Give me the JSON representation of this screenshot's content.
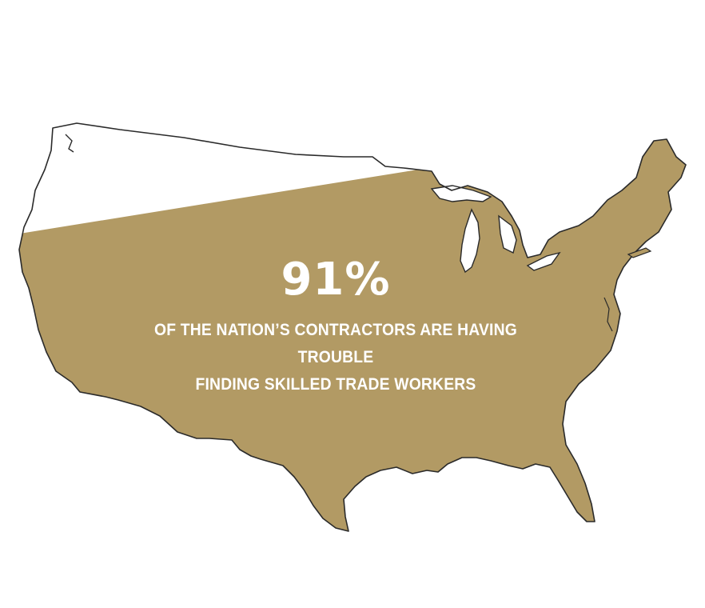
{
  "infographic": {
    "stat": {
      "value": "91%",
      "caption_line1": "OF THE NATION’S CONTRACTORS ARE HAVING TROUBLE",
      "caption_line2": "FINDING SKILLED TRADE WORKERS",
      "fraction_filled": 0.91
    },
    "colors": {
      "fill": "#b29a64",
      "outline": "#2a2a2a",
      "unfilled": "#ffffff",
      "text": "#ffffff"
    },
    "map": {
      "icon": "us-map-icon"
    }
  }
}
